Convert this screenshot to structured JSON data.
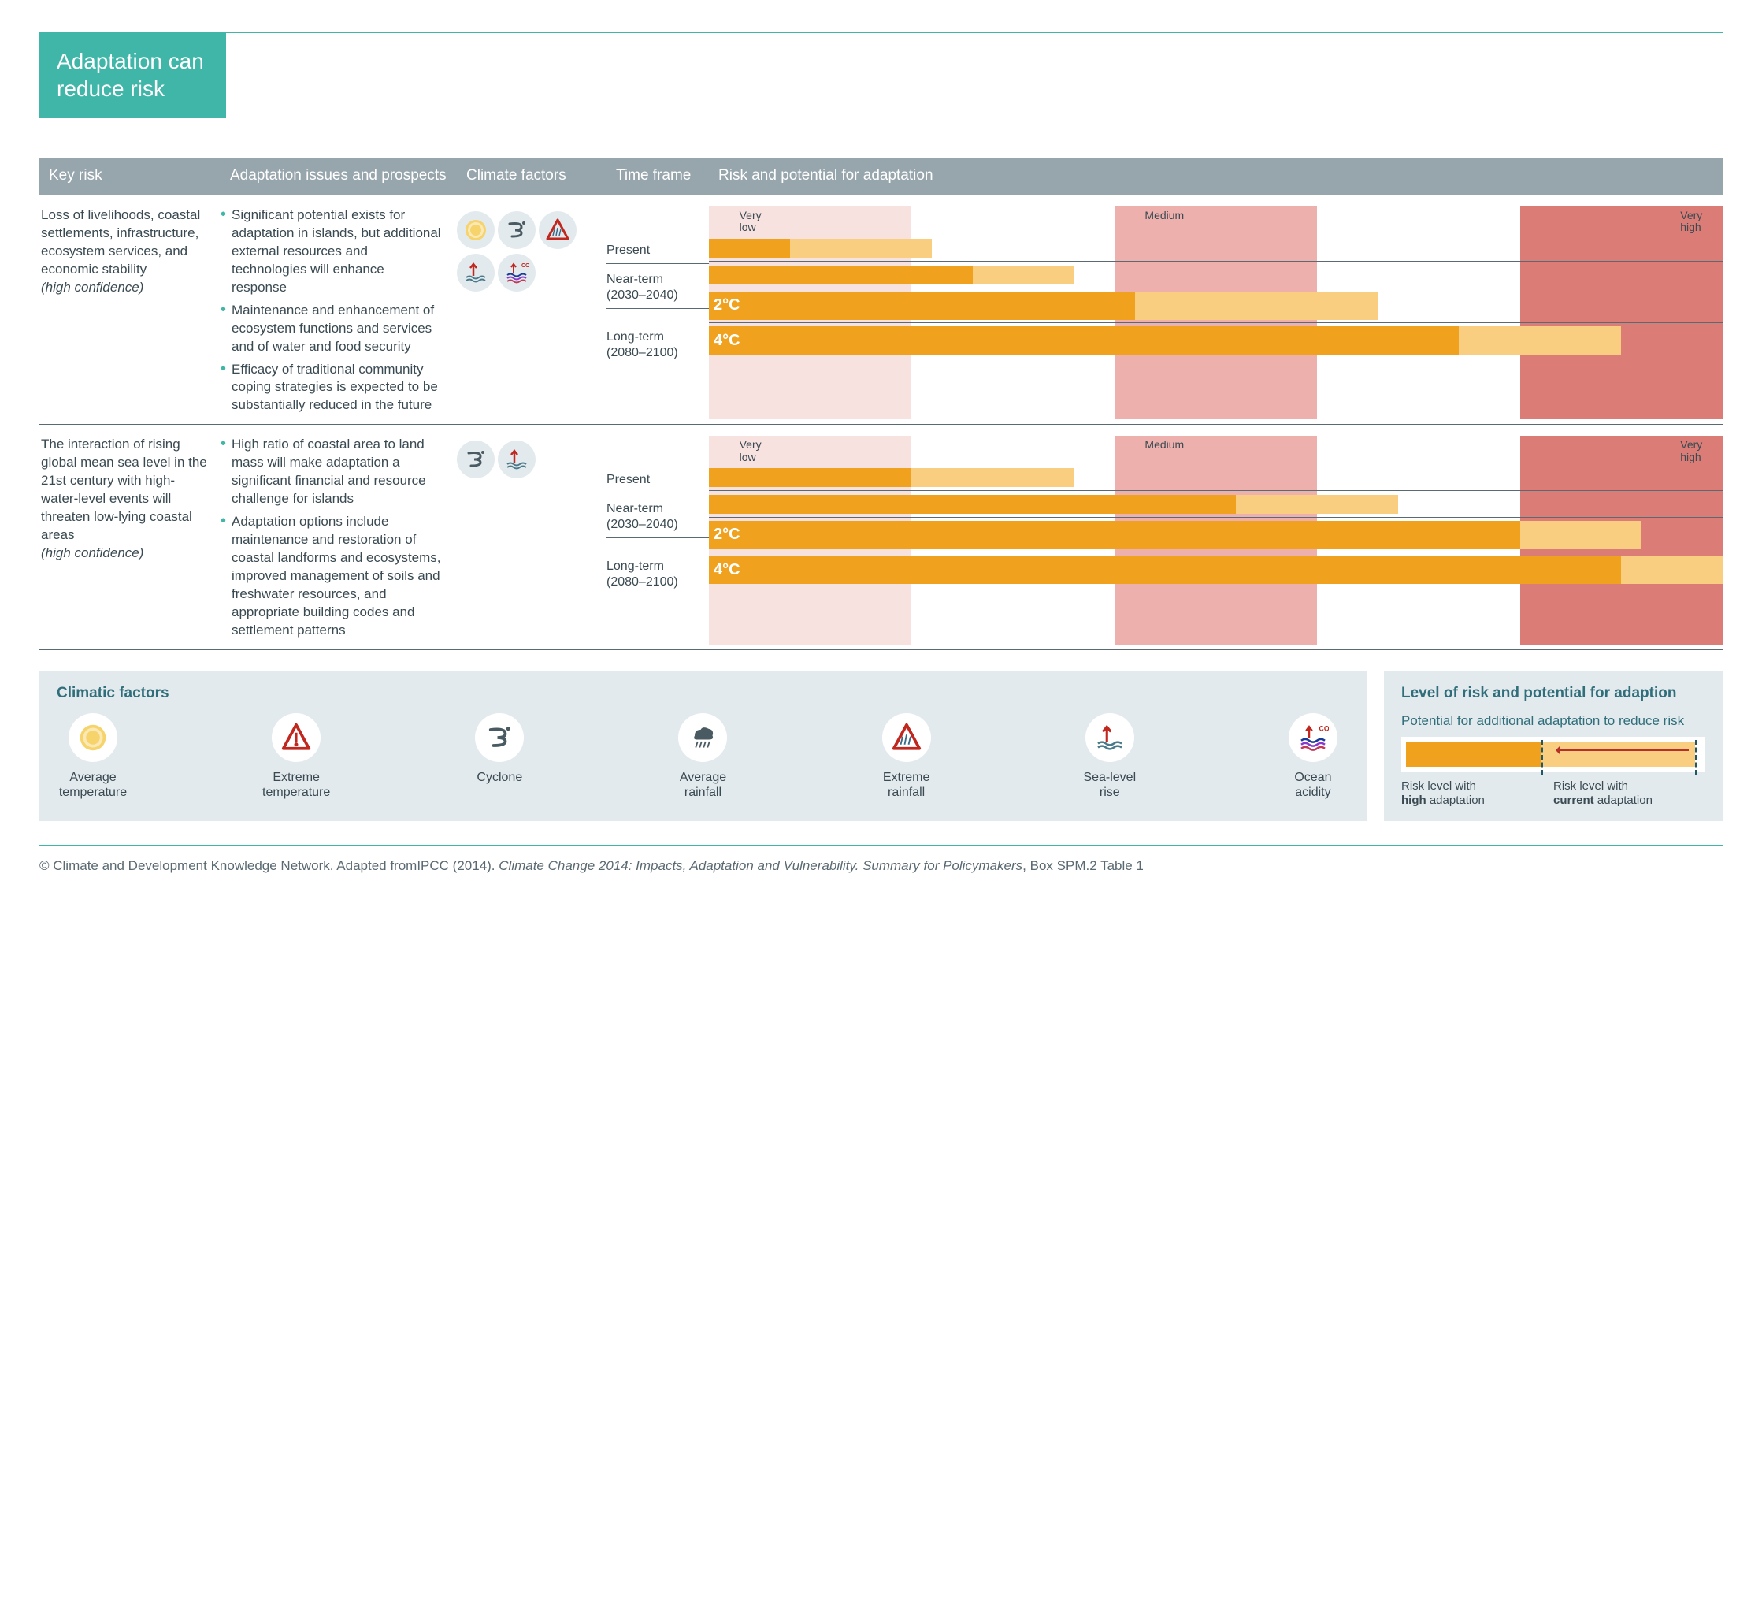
{
  "title_line1": "Adaptation can",
  "title_line2": "reduce risk",
  "columns": {
    "key_risk": "Key risk",
    "adaptation": "Adaptation issues and prospects",
    "climate_factors": "Climate factors",
    "time_frame": "Time frame",
    "risk_potential": "Risk and potential for adaptation"
  },
  "scale_labels": {
    "very_low": "Very low",
    "medium": "Medium",
    "very_high": "Very high"
  },
  "band_colors": [
    "#f8e2e0",
    "#ffffff",
    "#eeb0ac",
    "#ffffff",
    "#db7d76"
  ],
  "bar_colors": {
    "high": "#f0a21e",
    "current": "#f9ce80"
  },
  "timeframes": {
    "present": "Present",
    "near": "Near-term (2030–2040)",
    "long": "Long-term (2080–2100)",
    "t2c": "2°C",
    "t4c": "4°C"
  },
  "risks": [
    {
      "key_risk": "Loss of livelihoods, coastal settlements, infrastructure, ecosystem services, and economic stability",
      "confidence": "(high confidence)",
      "adaptation": [
        "Significant potential exists for adaptation in islands, but additional external resources and technologies will enhance response",
        "Maintenance and enhancement of ecosystem functions and services and of water and food security",
        "Efficacy of traditional community coping strategies is expected to be substantially reduced in the future"
      ],
      "factors": [
        "avg-temp",
        "cyclone",
        "ext-rain",
        "sea-level",
        "ocean-acid"
      ],
      "bars": {
        "present": {
          "high": 8,
          "current": 22
        },
        "near": {
          "high": 26,
          "current": 36
        },
        "long_2c": {
          "high": 42,
          "current": 66
        },
        "long_4c": {
          "high": 74,
          "current": 90
        }
      }
    },
    {
      "key_risk": "The interaction of rising global mean sea level in the 21st century with high-water-level events will threaten low-lying coastal areas",
      "confidence": "(high confidence)",
      "adaptation": [
        "High ratio of coastal area to land mass will make adaptation a significant financial and resource challenge for islands",
        "Adaptation options include maintenance and restoration of coastal landforms and ecosystems, improved management of soils and freshwater resources, and appropriate building codes and settlement patterns"
      ],
      "factors": [
        "cyclone",
        "sea-level"
      ],
      "bars": {
        "present": {
          "high": 20,
          "current": 36
        },
        "near": {
          "high": 52,
          "current": 68
        },
        "long_2c": {
          "high": 80,
          "current": 92
        },
        "long_4c": {
          "high": 90,
          "current": 100
        }
      }
    }
  ],
  "legend": {
    "climatic_title": "Climatic factors",
    "items": [
      {
        "id": "avg-temp",
        "label": "Average temperature"
      },
      {
        "id": "ext-temp",
        "label": "Extreme temperature"
      },
      {
        "id": "cyclone",
        "label": "Cyclone"
      },
      {
        "id": "avg-rain",
        "label": "Average rainfall"
      },
      {
        "id": "ext-rain",
        "label": "Extreme rainfall"
      },
      {
        "id": "sea-level",
        "label": "Sea-level rise"
      },
      {
        "id": "ocean-acid",
        "label": "Ocean acidity"
      }
    ],
    "right_title": "Level of risk and potential for adaption",
    "right_sub": "Potential for additional adaptation to reduce risk",
    "right_high_pct": 46,
    "right_current_pct": 98,
    "right_label_high_1": "Risk level with",
    "right_label_high_2": "high",
    "right_label_high_3": " adaptation",
    "right_label_cur_1": "Risk level with",
    "right_label_cur_2": "current",
    "right_label_cur_3": " adaptation"
  },
  "footer_plain": "© Climate and Development Knowledge Network. Adapted fromIPCC (2014). ",
  "footer_italic1": "Climate Change 2014: Impacts, Adaptation and Vulnerability. Summary for Policymakers",
  "footer_plain2": ", Box SPM.2 Table 1"
}
